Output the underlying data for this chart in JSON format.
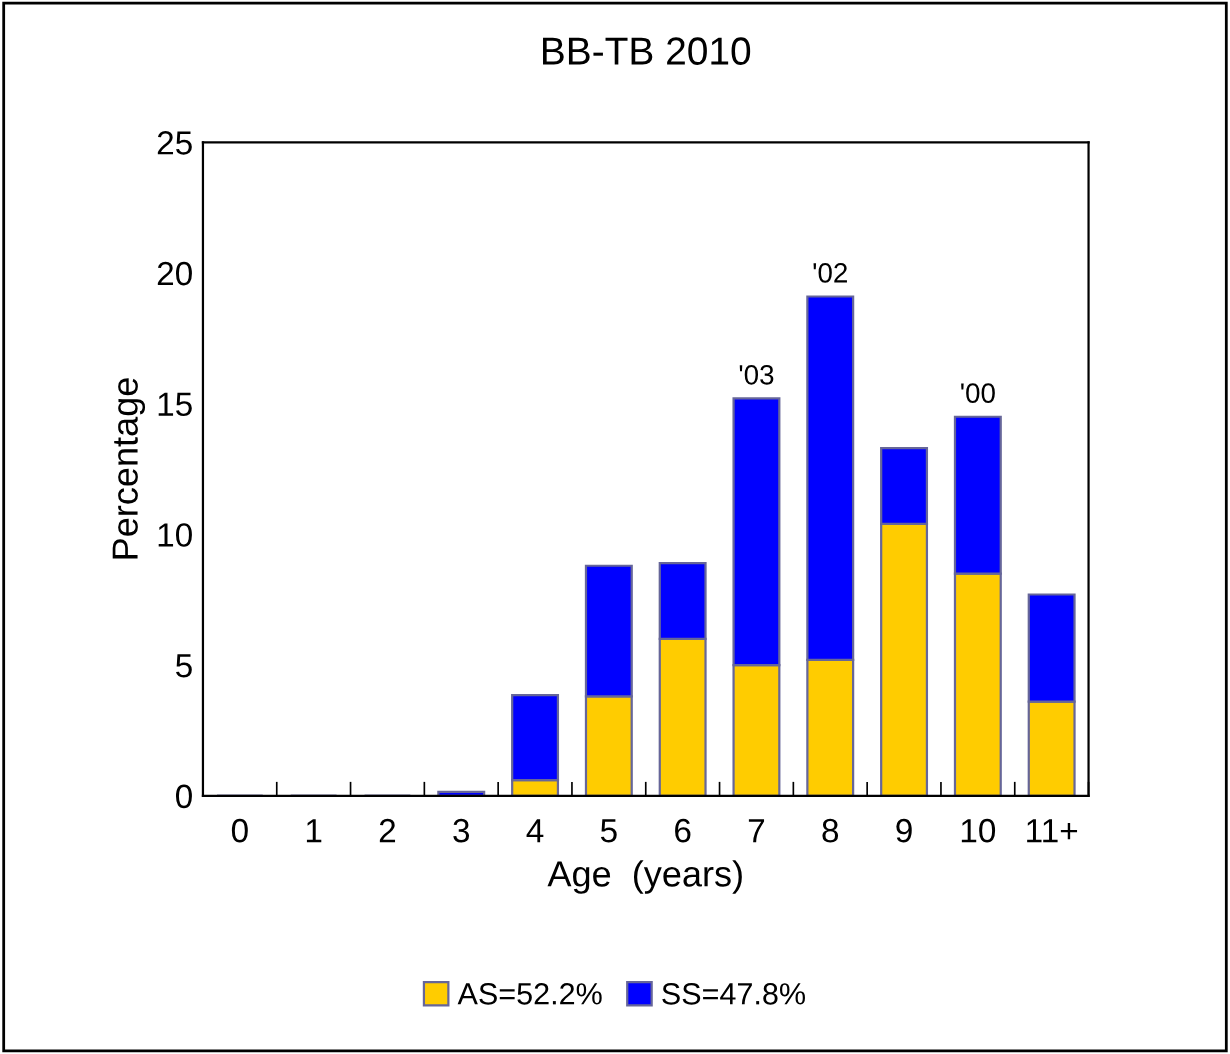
{
  "chart_data": {
    "type": "bar",
    "title": "BB-TB 2010",
    "xlabel": "Age  (years)",
    "ylabel": "Percentage",
    "categories": [
      "0",
      "1",
      "2",
      "3",
      "4",
      "5",
      "6",
      "7",
      "8",
      "9",
      "10",
      "11+"
    ],
    "stacked": true,
    "series": [
      {
        "name": "AS=52.2%",
        "color": "#ffcc00",
        "values": [
          0,
          0,
          0,
          0,
          0.6,
          3.8,
          6.0,
          5.0,
          5.2,
          10.4,
          8.5,
          3.6
        ]
      },
      {
        "name": "SS=47.8%",
        "color": "#0000ff",
        "values": [
          0,
          0,
          0,
          0.15,
          3.25,
          5.0,
          2.9,
          10.2,
          13.9,
          2.9,
          6.0,
          4.1
        ]
      }
    ],
    "annotations": [
      {
        "text": "'03",
        "x": "7",
        "y": 15.2
      },
      {
        "text": "'02",
        "x": "8",
        "y": 19.1
      },
      {
        "text": "'00",
        "x": "10",
        "y": 14.5
      }
    ],
    "ylim": [
      0,
      25
    ],
    "yticks": [
      0,
      5,
      10,
      15,
      20,
      25
    ],
    "grid": false,
    "legend": "bottom"
  }
}
